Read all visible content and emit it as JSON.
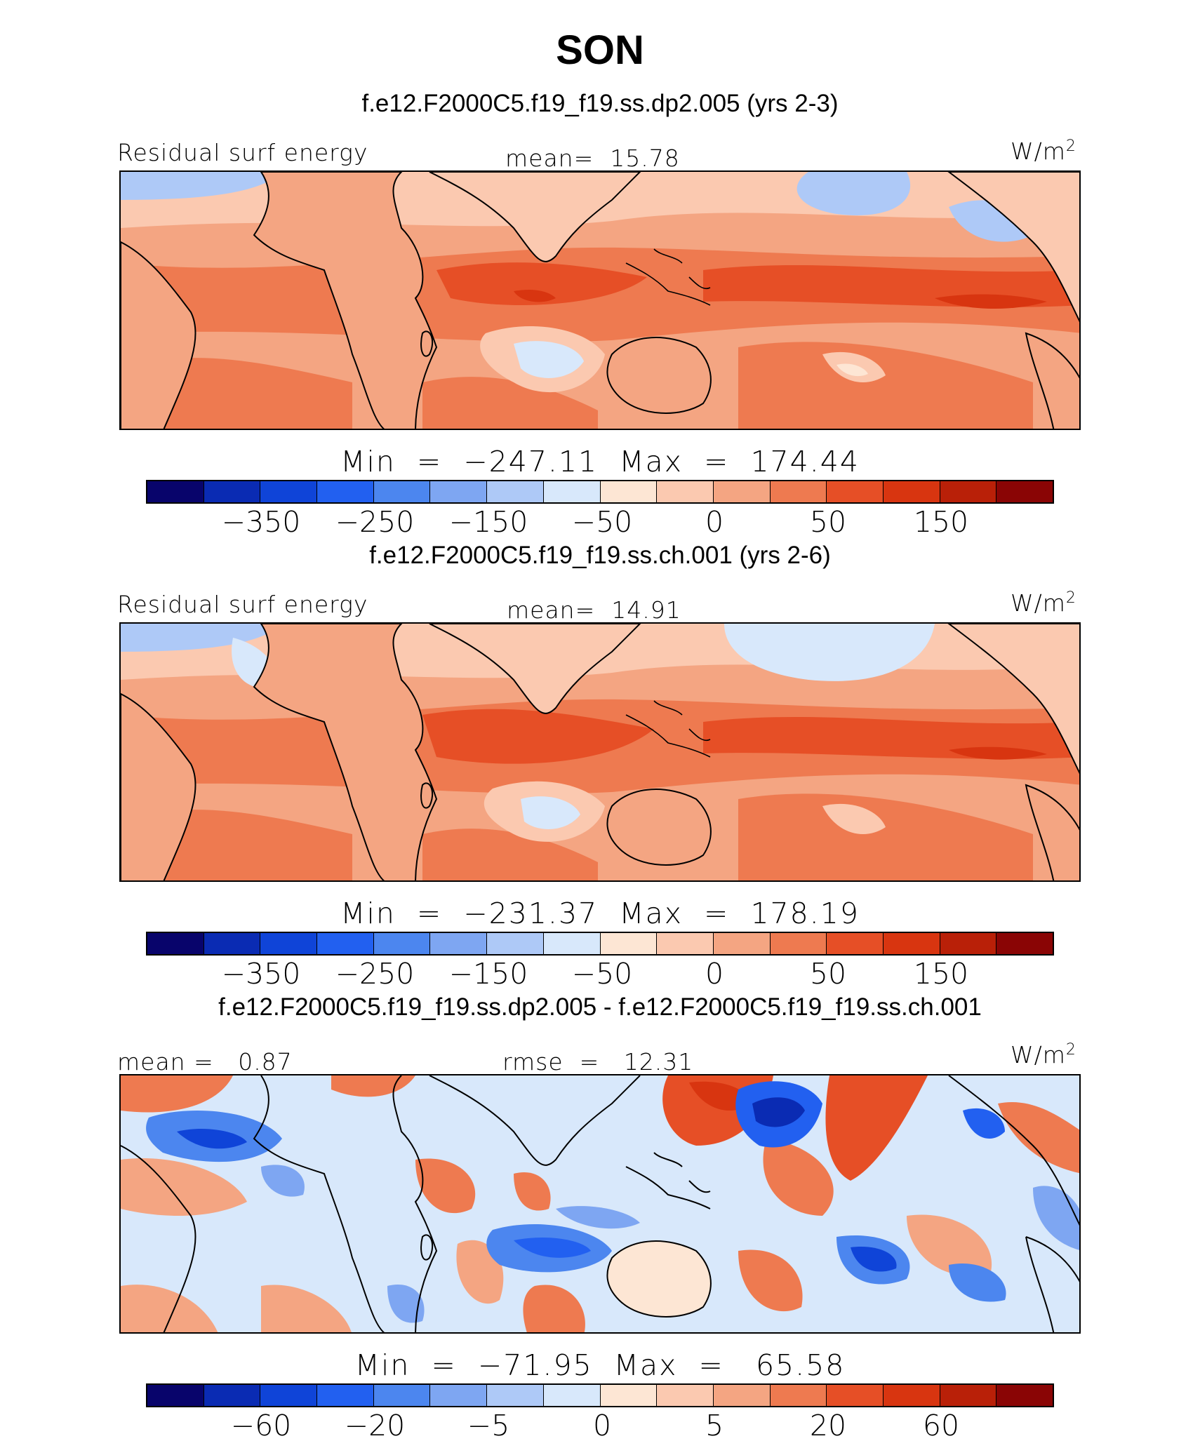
{
  "title": "SON",
  "unit_base": "W/m",
  "unit_exp": "2",
  "colors": {
    "palette": [
      "#08046b",
      "#0a2bb3",
      "#0f44d8",
      "#2260f0",
      "#4c86ef",
      "#7ea6f2",
      "#aec9f7",
      "#d8e8fb",
      "#fde6d4",
      "#fbc9b0",
      "#f4a582",
      "#ee7a50",
      "#e64f26",
      "#d83510",
      "#b92008",
      "#8a0505"
    ],
    "land_outline": "#000000"
  },
  "panels": [
    {
      "case_title": "f.e12.F2000C5.f19_f19.ss.dp2.005 (yrs 2-3)",
      "left_label": "Residual surf energy",
      "center_label": "mean=  15.78",
      "min_max": "Min  =  −247.11  Max  =  174.44",
      "tick_labels": [
        "−350",
        "−250",
        "−150",
        "−50",
        "0",
        "50",
        "150"
      ]
    },
    {
      "case_title": "f.e12.F2000C5.f19_f19.ss.ch.001 (yrs 2-6)",
      "left_label": "Residual surf energy",
      "center_label": "mean=  14.91",
      "min_max": "Min  =  −231.37  Max  =  178.19",
      "tick_labels": [
        "−350",
        "−250",
        "−150",
        "−50",
        "0",
        "50",
        "150"
      ]
    },
    {
      "case_title": "f.e12.F2000C5.f19_f19.ss.dp2.005 - f.e12.F2000C5.f19_f19.ss.ch.001",
      "left_label": "mean =   0.87",
      "center_label": "rmse  =   12.31",
      "min_max": "Min  =  −71.95  Max  =   65.58",
      "tick_labels": [
        "−60",
        "−20",
        "−5",
        "0",
        "5",
        "20",
        "60"
      ]
    }
  ]
}
